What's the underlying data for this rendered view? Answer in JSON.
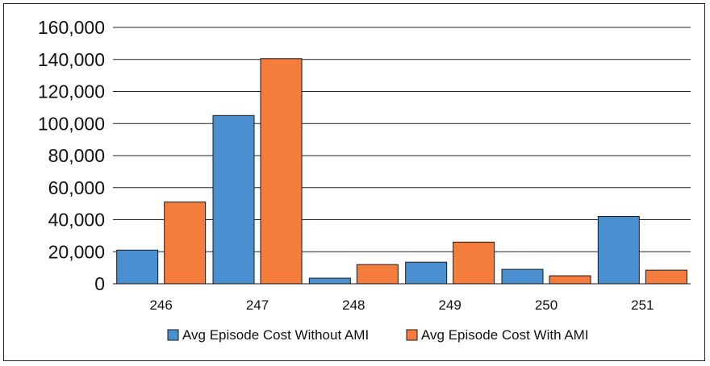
{
  "chart_data": {
    "type": "bar",
    "title": "",
    "xlabel": "",
    "ylabel": "",
    "categories": [
      "246",
      "247",
      "248",
      "249",
      "250",
      "251"
    ],
    "series": [
      {
        "name": "Avg Episode Cost Without AMI",
        "color": "#4a8fd0",
        "values": [
          21000,
          105000,
          3500,
          13500,
          9000,
          42000
        ]
      },
      {
        "name": "Avg Episode Cost With AMI",
        "color": "#f47c3c",
        "values": [
          51000,
          140500,
          12000,
          26000,
          5000,
          8500
        ]
      }
    ],
    "ylim": [
      0,
      160000
    ],
    "yticks": [
      0,
      20000,
      40000,
      60000,
      80000,
      100000,
      120000,
      140000,
      160000
    ],
    "ytick_labels": [
      "0",
      "20,000",
      "40,000",
      "60,000",
      "80,000",
      "100,000",
      "120,000",
      "140,000",
      "160,000"
    ],
    "grid": true,
    "legend_position": "bottom"
  }
}
